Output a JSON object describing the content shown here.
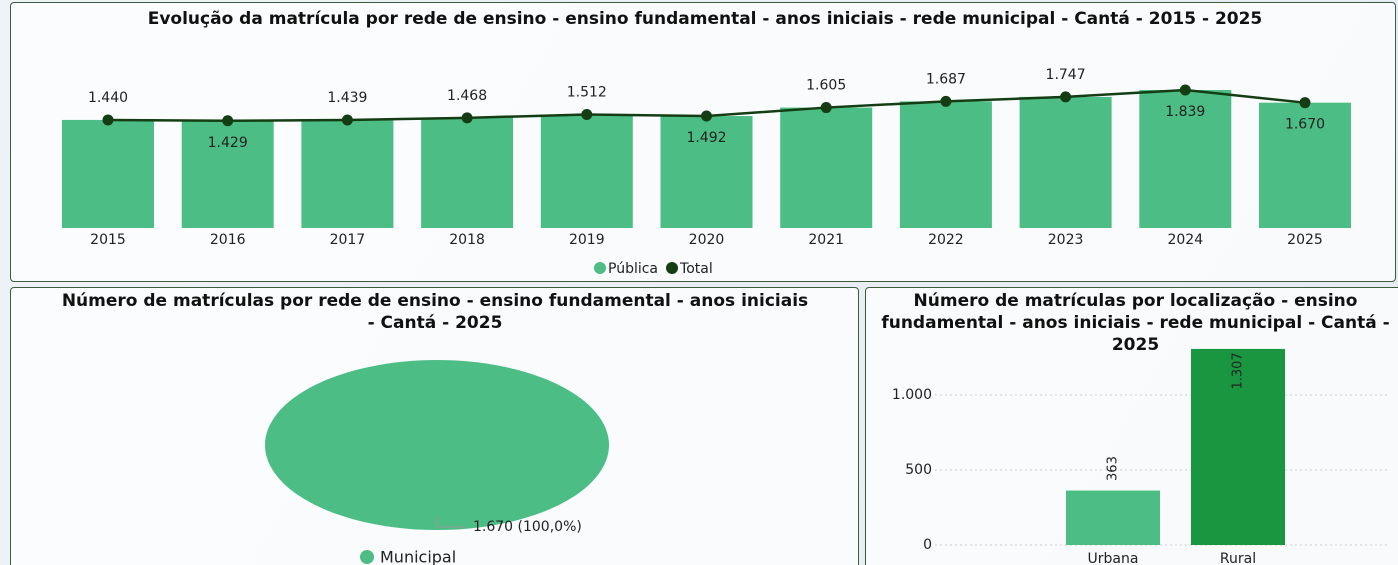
{
  "chart_data": [
    {
      "type": "combo",
      "title": "Evolução da matrícula por rede de ensino - ensino fundamental - anos iniciais - rede municipal - Cantá - 2015 - 2025",
      "categories": [
        "2015",
        "2016",
        "2017",
        "2018",
        "2019",
        "2020",
        "2021",
        "2022",
        "2023",
        "2024",
        "2025"
      ],
      "series": [
        {
          "name": "Pública",
          "color": "#4dbd86",
          "kind": "bar",
          "values": [
            1440,
            1429,
            1439,
            1468,
            1512,
            1492,
            1605,
            1687,
            1747,
            1839,
            1670
          ]
        },
        {
          "name": "Total",
          "color": "#143d14",
          "kind": "line",
          "values": [
            1440,
            1429,
            1439,
            1468,
            1512,
            1492,
            1605,
            1687,
            1747,
            1839,
            1670
          ],
          "value_labels": [
            "1.440",
            "1.429",
            "1.439",
            "1.468",
            "1.512",
            "1.492",
            "1.605",
            "1.687",
            "1.747",
            "1.839",
            "1.670"
          ]
        }
      ]
    },
    {
      "type": "pie",
      "title": "Número de matrículas por rede de ensino - ensino fundamental - anos iniciais - Cantá - 2025",
      "categories": [
        "Municipal"
      ],
      "values": [
        1670
      ],
      "value_labels": [
        "1.670 (100,0%)"
      ],
      "colors": [
        "#4dbd86"
      ]
    },
    {
      "type": "bar",
      "title": "Número de matrículas por localização - ensino fundamental - anos iniciais - rede municipal - Cantá - 2025",
      "categories": [
        "Urbana",
        "Rural"
      ],
      "values": [
        363,
        1307
      ],
      "value_labels": [
        "363",
        "1.307"
      ],
      "colors": [
        "#4dbd86",
        "#1a9641"
      ],
      "ylim": [
        0,
        1400
      ],
      "yticks": [
        0,
        500,
        {
          "value": 1000,
          "label": "1.000"
        }
      ],
      "grid": true
    }
  ]
}
